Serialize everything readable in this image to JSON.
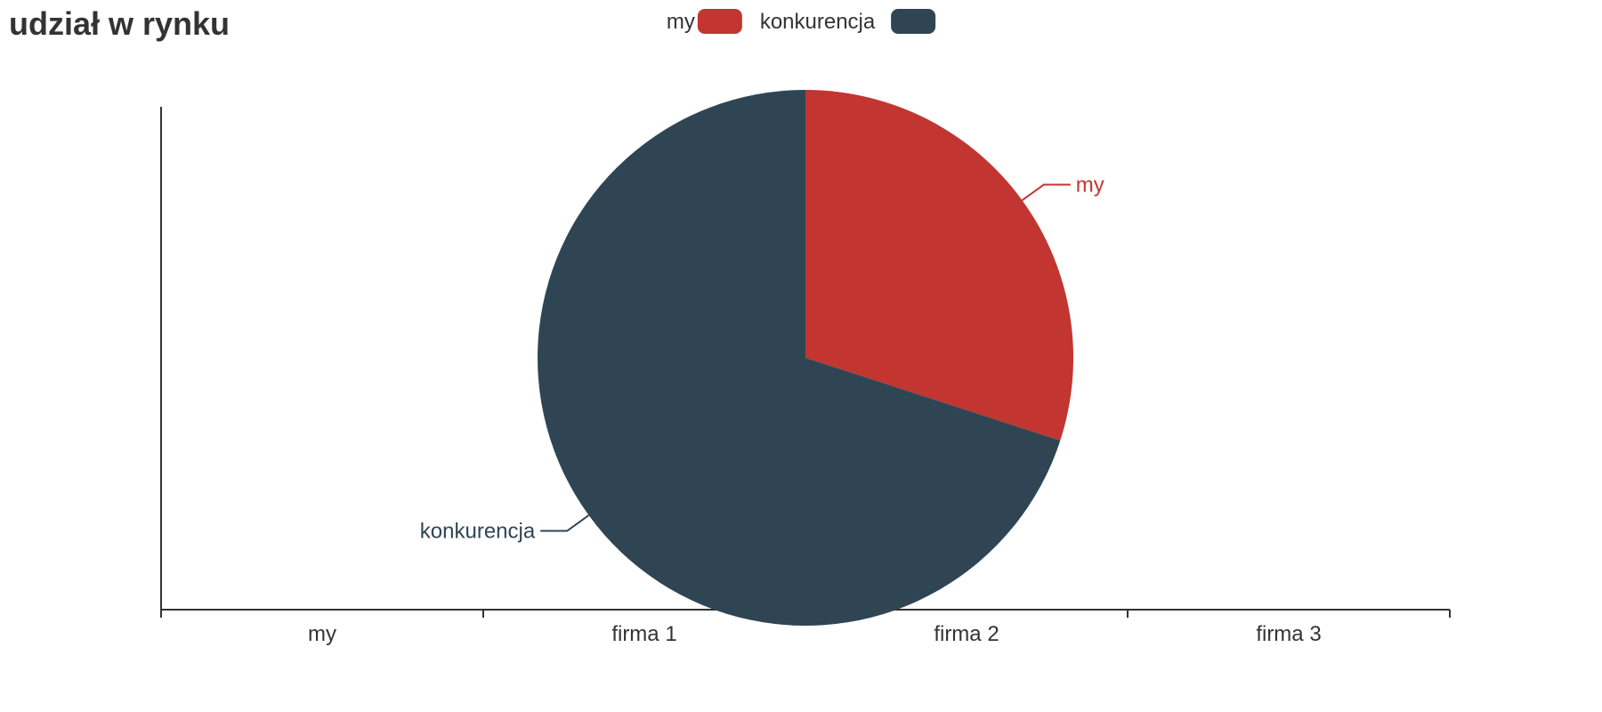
{
  "chart_data": {
    "type": "pie",
    "title": "udział w rynku",
    "legend": {
      "position": "top-center"
    },
    "colors": {
      "my": "#c23531",
      "konkurencja": "#2f4554",
      "axis": "#333333"
    },
    "slices": [
      {
        "name": "my",
        "value": 30
      },
      {
        "name": "konkurencja",
        "value": 70
      }
    ],
    "x_categories": [
      "my",
      "firma 1",
      "firma 2",
      "firma 3"
    ]
  }
}
